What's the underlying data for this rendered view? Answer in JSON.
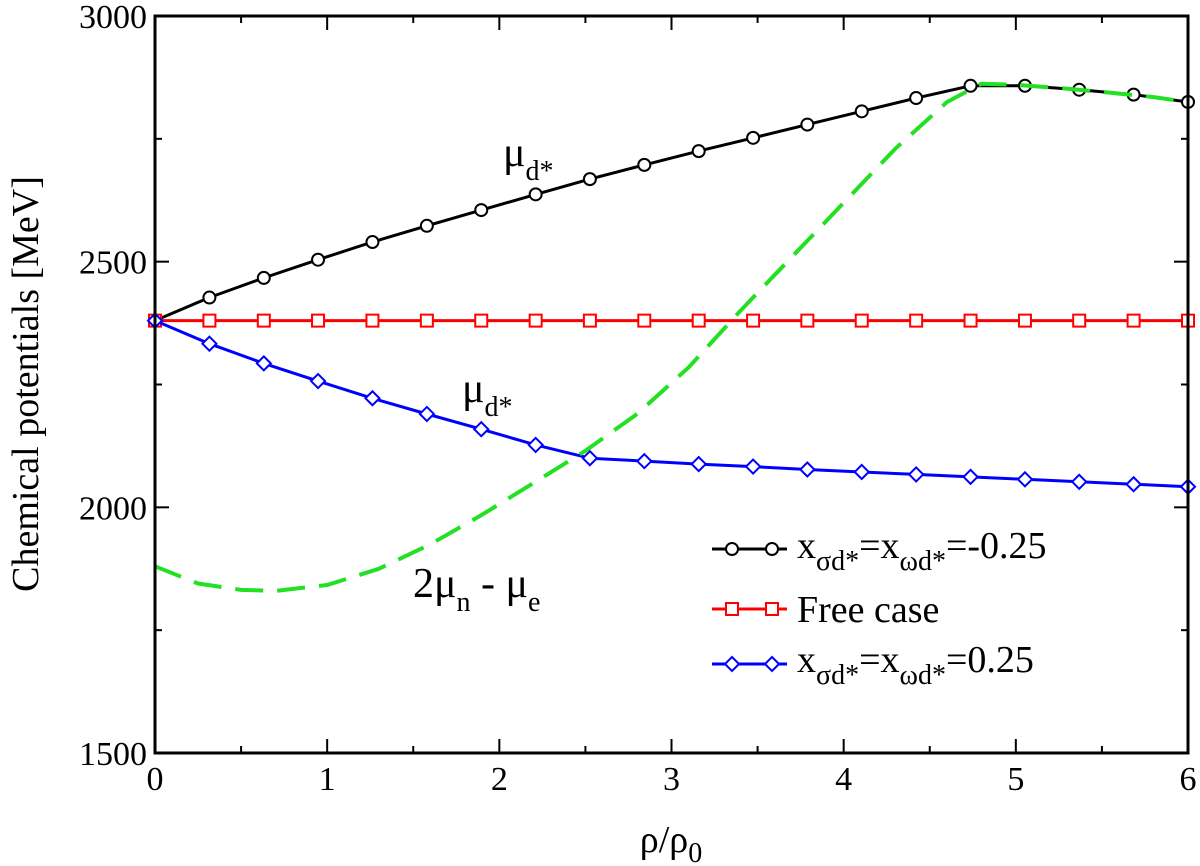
{
  "chart_data": {
    "type": "line",
    "xlabel": "ρ/ρ",
    "xlabel_sub": "0",
    "ylabel": "Chemical potentials [MeV]",
    "xlim": [
      0,
      6
    ],
    "ylim": [
      1500,
      3000
    ],
    "xticks": [
      0,
      1,
      2,
      3,
      4,
      5,
      6
    ],
    "yticks": [
      1500,
      2000,
      2500,
      3000
    ],
    "grid": false,
    "legend_position": "bottom-right",
    "series": [
      {
        "name": "x_σd*=x_ωd*=-0.25",
        "legend": {
          "base1": "x",
          "sub1": "σd*",
          "mid": "=x",
          "sub2": "ωd*",
          "tail": "=-0.25"
        },
        "color": "#000000",
        "marker": "circle",
        "x": [
          0,
          0.316,
          0.632,
          0.947,
          1.263,
          1.579,
          1.895,
          2.211,
          2.526,
          2.842,
          3.158,
          3.474,
          3.789,
          4.105,
          4.421,
          4.737,
          5.053,
          5.368,
          5.684,
          6.0
        ],
        "y": [
          2380,
          2427,
          2467,
          2504,
          2540,
          2573,
          2605,
          2637,
          2668,
          2697,
          2725,
          2752,
          2779,
          2806,
          2833,
          2858,
          2858,
          2850,
          2840,
          2825
        ]
      },
      {
        "name": "Free case",
        "legend": {
          "base1": "Free case",
          "sub1": "",
          "mid": "",
          "sub2": "",
          "tail": ""
        },
        "color": "#ff0000",
        "marker": "square",
        "x": [
          0,
          0.316,
          0.632,
          0.947,
          1.263,
          1.579,
          1.895,
          2.211,
          2.526,
          2.842,
          3.158,
          3.474,
          3.789,
          4.105,
          4.421,
          4.737,
          5.053,
          5.368,
          5.684,
          6.0
        ],
        "y": [
          2380,
          2380,
          2380,
          2380,
          2380,
          2380,
          2380,
          2380,
          2380,
          2380,
          2380,
          2380,
          2380,
          2380,
          2380,
          2380,
          2380,
          2380,
          2380,
          2380
        ]
      },
      {
        "name": "x_σd*=x_ωd*=0.25",
        "legend": {
          "base1": "x",
          "sub1": "σd*",
          "mid": "=x",
          "sub2": "ωd*",
          "tail": "=0.25"
        },
        "color": "#0000ff",
        "marker": "diamond",
        "x": [
          0,
          0.316,
          0.632,
          0.947,
          1.263,
          1.579,
          1.895,
          2.211,
          2.526,
          2.842,
          3.158,
          3.474,
          3.789,
          4.105,
          4.421,
          4.737,
          5.053,
          5.368,
          5.684,
          6.0
        ],
        "y": [
          2380,
          2333,
          2293,
          2257,
          2222,
          2190,
          2159,
          2127,
          2100,
          2094,
          2088,
          2083,
          2077,
          2072,
          2067,
          2062,
          2057,
          2052,
          2047,
          2042
        ]
      },
      {
        "name": "2μn - μe",
        "color": "#22e022",
        "dashed": true,
        "marker": "none",
        "x": [
          0,
          0.25,
          0.5,
          0.7,
          1.0,
          1.3,
          1.6,
          1.9,
          2.2,
          2.5,
          2.8,
          3.1,
          3.4,
          3.7,
          4.0,
          4.3,
          4.6,
          4.8,
          5.0,
          5.3,
          5.6,
          5.8,
          6.0
        ],
        "y": [
          1880,
          1845,
          1832,
          1830,
          1842,
          1875,
          1925,
          1985,
          2050,
          2115,
          2190,
          2285,
          2400,
          2510,
          2620,
          2730,
          2825,
          2862,
          2860,
          2852,
          2842,
          2835,
          2825
        ]
      }
    ],
    "annotations": [
      {
        "base": "μ",
        "sub": "d*"
      },
      {
        "base": "μ",
        "sub": "d*"
      },
      {
        "base": "2μ",
        "sub": "n",
        "mid": " - μ",
        "sub2": "e"
      }
    ]
  }
}
